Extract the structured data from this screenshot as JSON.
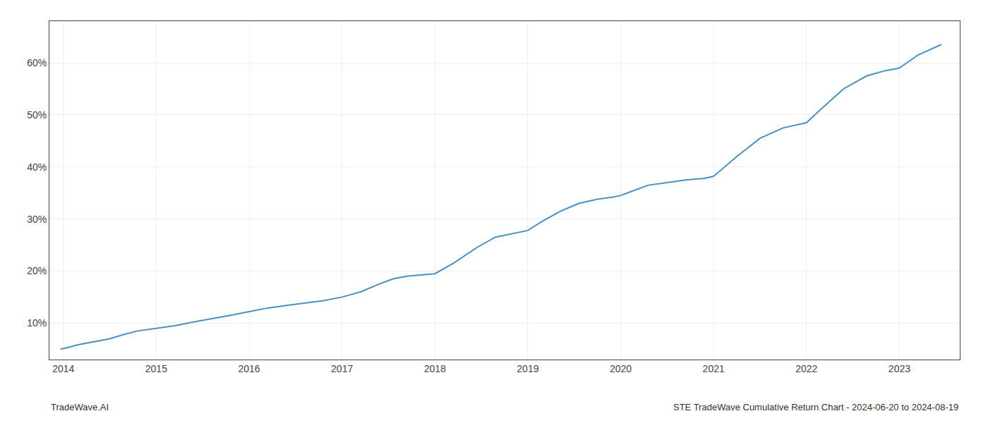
{
  "chart_data": {
    "type": "line",
    "title": "STE TradeWave Cumulative Return Chart - 2024-06-20 to 2024-08-19",
    "annotations": [
      {
        "text": "TradeWave.AI"
      }
    ],
    "x": [
      2013.97,
      2014.05,
      2014.15,
      2014.3,
      2014.5,
      2014.65,
      2014.8,
      2015.0,
      2015.2,
      2015.4,
      2015.6,
      2015.8,
      2016.0,
      2016.2,
      2016.4,
      2016.6,
      2016.8,
      2017.0,
      2017.2,
      2017.4,
      2017.55,
      2017.7,
      2017.85,
      2018.0,
      2018.2,
      2018.45,
      2018.65,
      2018.85,
      2019.0,
      2019.15,
      2019.35,
      2019.55,
      2019.75,
      2019.92,
      2020.0,
      2020.1,
      2020.3,
      2020.5,
      2020.7,
      2020.9,
      2021.0,
      2021.25,
      2021.5,
      2021.75,
      2022.0,
      2022.15,
      2022.4,
      2022.65,
      2022.85,
      2023.0,
      2023.2,
      2023.45
    ],
    "values": [
      5.0,
      5.3,
      5.8,
      6.3,
      7.0,
      7.8,
      8.5,
      9.0,
      9.5,
      10.2,
      10.8,
      11.5,
      12.2,
      12.9,
      13.4,
      13.8,
      14.3,
      15.0,
      16.0,
      17.5,
      18.5,
      19.0,
      19.3,
      19.5,
      21.5,
      24.5,
      26.5,
      27.2,
      27.8,
      29.5,
      31.5,
      33.0,
      33.8,
      34.2,
      34.5,
      35.2,
      36.5,
      37.0,
      37.5,
      37.8,
      38.2,
      42.0,
      45.5,
      47.5,
      48.5,
      51.0,
      55.0,
      57.5,
      58.5,
      59.0,
      61.5,
      63.5
    ],
    "color": "#4a90c4",
    "xlim": [
      2013.85,
      2023.65
    ],
    "xticks": [
      2014,
      2015,
      2016,
      2017,
      2018,
      2019,
      2020,
      2021,
      2022,
      2023
    ],
    "ylim": [
      3.0,
      68.0
    ],
    "yticks": [
      {
        "value": 10,
        "label": "10%"
      },
      {
        "value": 20,
        "label": "20%"
      },
      {
        "value": 30,
        "label": "30%"
      },
      {
        "value": 40,
        "label": "40%"
      },
      {
        "value": 50,
        "label": "50%"
      },
      {
        "value": 60,
        "label": "60%"
      }
    ],
    "grid": true
  }
}
